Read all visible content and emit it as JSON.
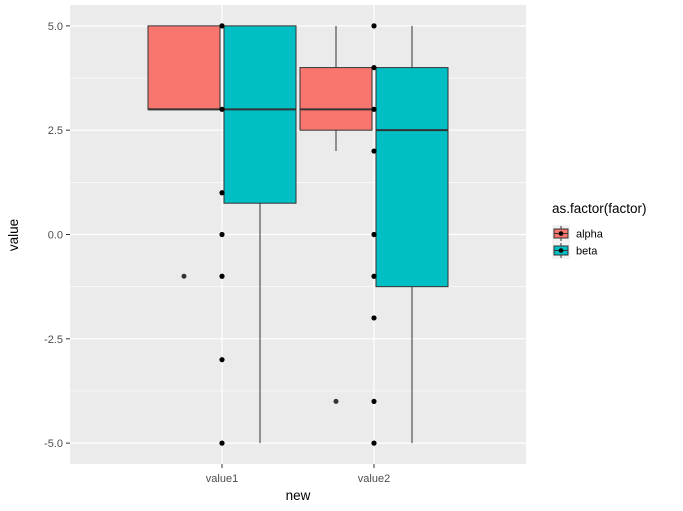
{
  "chart_data": {
    "type": "boxplot",
    "xlabel": "new",
    "ylabel": "value",
    "categories": [
      "value1",
      "value2"
    ],
    "yticks": [
      -5.0,
      -2.5,
      0.0,
      2.5,
      5.0
    ],
    "ytick_labels": [
      "-5.0",
      "-2.5",
      "0.0",
      "2.5",
      "5.0"
    ],
    "ylim": [
      -5.5,
      5.5
    ],
    "grid": true,
    "legend": {
      "title": "as.factor(factor)",
      "position": "right",
      "entries": [
        "alpha",
        "beta"
      ]
    },
    "series": [
      {
        "name": "alpha",
        "color": "#F8766D",
        "boxes": [
          {
            "category": "value1",
            "lower_whisker": 3,
            "q1": 3,
            "median": 3,
            "q3": 5,
            "upper_whisker": 5,
            "outliers": [
              -1
            ]
          },
          {
            "category": "value2",
            "lower_whisker": 2,
            "q1": 2.5,
            "median": 3,
            "q3": 4,
            "upper_whisker": 5,
            "outliers": [
              -4
            ]
          }
        ]
      },
      {
        "name": "beta",
        "color": "#00BFC4",
        "boxes": [
          {
            "category": "value1",
            "lower_whisker": -5,
            "q1": 0.75,
            "median": 3,
            "q3": 5,
            "upper_whisker": 5,
            "outliers": []
          },
          {
            "category": "value2",
            "lower_whisker": -5,
            "q1": -1.25,
            "median": 2.5,
            "q3": 4,
            "upper_whisker": 5,
            "outliers": []
          }
        ]
      }
    ],
    "points": [
      {
        "category": "value1",
        "values": [
          5,
          3,
          1,
          0,
          -1,
          -3,
          -5
        ]
      },
      {
        "category": "value2",
        "values": [
          5,
          4,
          3,
          2,
          0,
          -1,
          -2,
          -4,
          -5
        ]
      }
    ],
    "colors": {
      "panel": "#EBEBEB",
      "grid": "#FFFFFF",
      "outline": "#333333",
      "point": "#000000",
      "outlier": "#333333"
    }
  }
}
